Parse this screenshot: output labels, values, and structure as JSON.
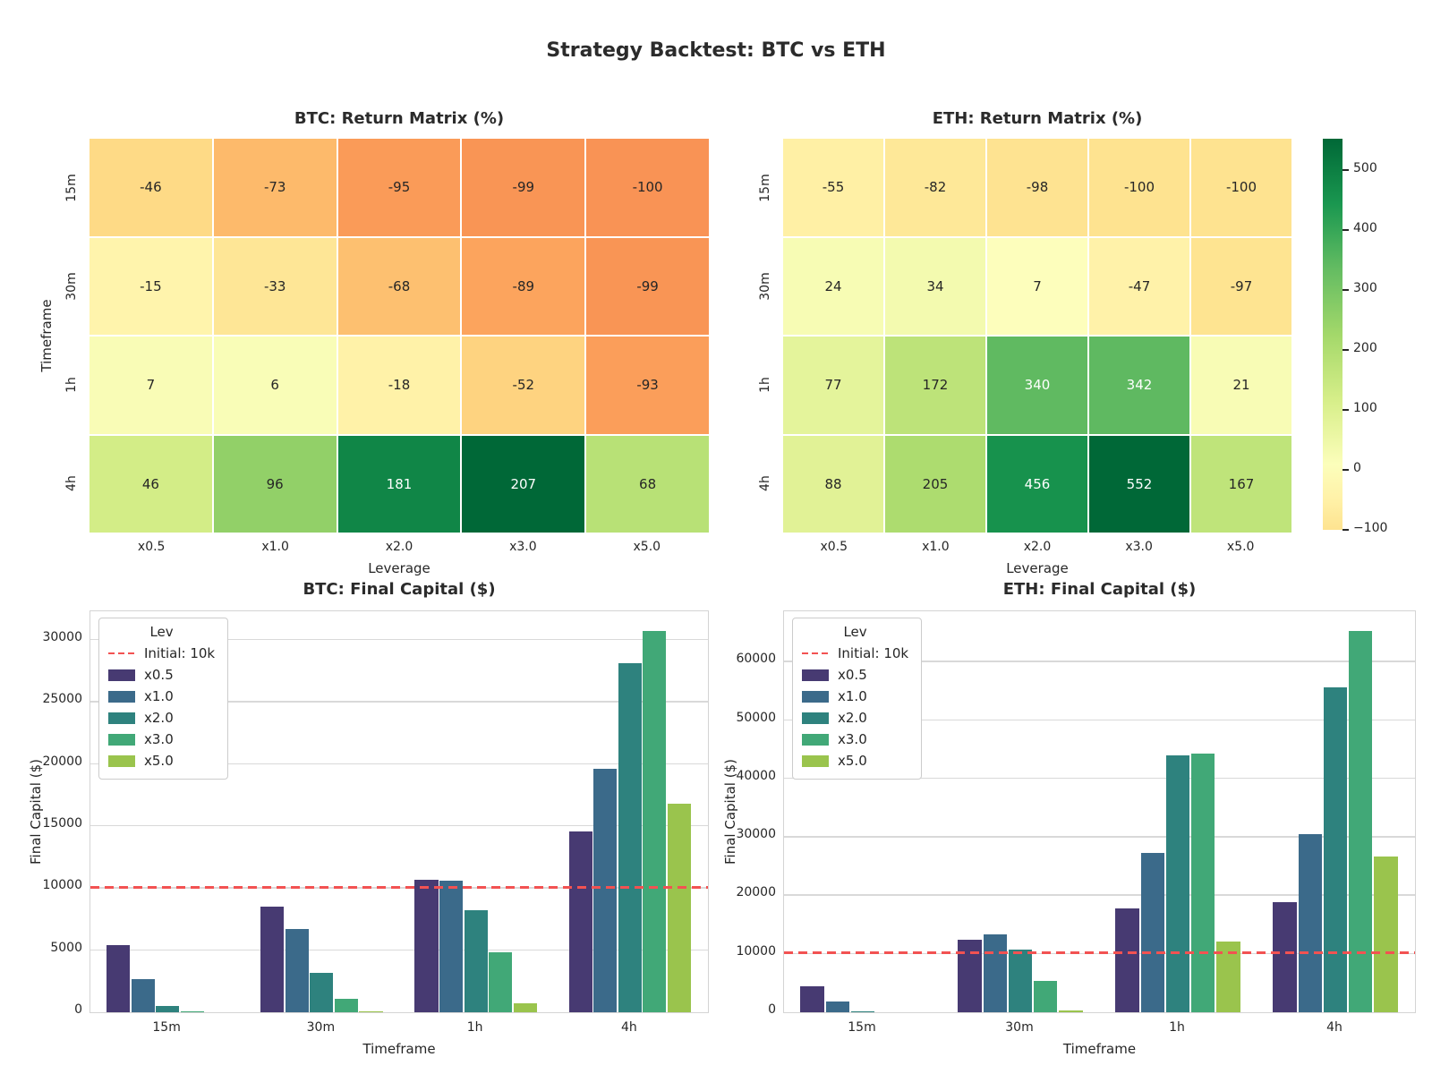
{
  "figure": {
    "suptitle": "Strategy Backtest: BTC vs ETH"
  },
  "colors": {
    "bar_palette": [
      "#473a72",
      "#3b6a8a",
      "#2e827e",
      "#41a877",
      "#9ac44d"
    ],
    "ref_line": "#f25252",
    "grid": "#d9d9d9",
    "spine": "#d4d4d4",
    "text": "#262626",
    "heatmap_cmap_anchors": [
      "#a50026",
      "#d73027",
      "#f46d43",
      "#fdae61",
      "#fee08b",
      "#ffffbf",
      "#d9ef8b",
      "#a6d96a",
      "#66bd63",
      "#1a9850",
      "#006837"
    ]
  },
  "chart_data": [
    {
      "type": "heatmap",
      "title": "BTC: Return Matrix (%)",
      "xlabel": "Leverage",
      "ylabel": "Timeframe",
      "columns": [
        "x0.5",
        "x1.0",
        "x2.0",
        "x3.0",
        "x5.0"
      ],
      "rows": [
        "15m",
        "30m",
        "1h",
        "4h"
      ],
      "values": [
        [
          -46,
          -73,
          -95,
          -99,
          -100
        ],
        [
          -15,
          -33,
          -68,
          -89,
          -99
        ],
        [
          7,
          6,
          -18,
          -52,
          -93
        ],
        [
          46,
          96,
          181,
          207,
          68
        ]
      ],
      "colormap": "RdYlGn",
      "center": 0,
      "vmin": -100,
      "vmax": 207
    },
    {
      "type": "heatmap",
      "title": "ETH: Return Matrix (%)",
      "xlabel": "Leverage",
      "ylabel": "",
      "columns": [
        "x0.5",
        "x1.0",
        "x2.0",
        "x3.0",
        "x5.0"
      ],
      "rows": [
        "15m",
        "30m",
        "1h",
        "4h"
      ],
      "values": [
        [
          -55,
          -82,
          -98,
          -100,
          -100
        ],
        [
          24,
          34,
          7,
          -47,
          -97
        ],
        [
          77,
          172,
          340,
          342,
          21
        ],
        [
          88,
          205,
          456,
          552,
          167
        ]
      ],
      "colormap": "RdYlGn",
      "center": 0,
      "vmin": -100,
      "vmax": 552,
      "colorbar": {
        "ticks": [
          500,
          400,
          300,
          200,
          100,
          0,
          -100
        ],
        "vmin": -100,
        "vmax": 552
      }
    },
    {
      "type": "bar",
      "title": "BTC: Final Capital ($)",
      "xlabel": "Timeframe",
      "ylabel": "Final Capital ($)",
      "categories": [
        "15m",
        "30m",
        "1h",
        "4h"
      ],
      "legend_title": "Lev",
      "ref_line": {
        "label": "Initial: 10k",
        "value": 10000
      },
      "series": [
        {
          "name": "x0.5",
          "values": [
            5400,
            8500,
            10700,
            14600
          ]
        },
        {
          "name": "x1.0",
          "values": [
            2700,
            6700,
            10600,
            19600
          ]
        },
        {
          "name": "x2.0",
          "values": [
            500,
            3200,
            8200,
            28100
          ]
        },
        {
          "name": "x3.0",
          "values": [
            100,
            1100,
            4800,
            30700
          ]
        },
        {
          "name": "x5.0",
          "values": [
            0,
            100,
            700,
            16800
          ]
        }
      ],
      "yticks": [
        0,
        5000,
        10000,
        15000,
        20000,
        25000,
        30000
      ],
      "ylim": [
        0,
        32235
      ],
      "grid": true,
      "legend_position": "upper-left"
    },
    {
      "type": "bar",
      "title": "ETH: Final Capital ($)",
      "xlabel": "Timeframe",
      "ylabel": "Final Capital ($)",
      "categories": [
        "15m",
        "30m",
        "1h",
        "4h"
      ],
      "legend_title": "Lev",
      "ref_line": {
        "label": "Initial: 10k",
        "value": 10000
      },
      "series": [
        {
          "name": "x0.5",
          "values": [
            4500,
            12400,
            17700,
            18800
          ]
        },
        {
          "name": "x1.0",
          "values": [
            1800,
            13400,
            27200,
            30500
          ]
        },
        {
          "name": "x2.0",
          "values": [
            200,
            10700,
            44000,
            55600
          ]
        },
        {
          "name": "x3.0",
          "values": [
            0,
            5300,
            44200,
            65200
          ]
        },
        {
          "name": "x5.0",
          "values": [
            0,
            300,
            12100,
            26700
          ]
        }
      ],
      "yticks": [
        0,
        10000,
        20000,
        30000,
        40000,
        50000,
        60000
      ],
      "ylim": [
        0,
        68460
      ],
      "grid": true,
      "legend_position": "upper-left"
    }
  ]
}
